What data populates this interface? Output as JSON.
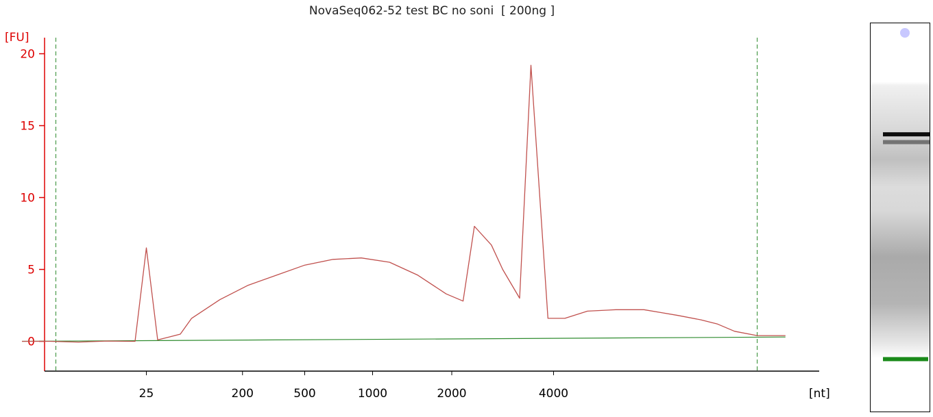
{
  "chart_data": {
    "type": "line",
    "title": "NovaSeq062-52 test BC no soni  [ 200ng ]",
    "ylabel": "[FU]",
    "xlabel": "[nt]",
    "ylim": [
      -2,
      21
    ],
    "y_ticks": [
      0,
      5,
      10,
      15,
      20
    ],
    "x_tick_labels": [
      "25",
      "200",
      "500",
      "1000",
      "2000",
      "4000"
    ],
    "colors": {
      "trace": "#c0504d",
      "y_axis": "#dd0000",
      "baseline": "#2e8b2e",
      "marker_lines": "#2e8b2e",
      "x_axis": "#000000",
      "lower_marker_band": "#1a8a1a",
      "upper_marker_spot": "#c8c8ff"
    },
    "series": [
      {
        "x": [
          0.0,
          0.5,
          1.0,
          1.5,
          2.0,
          2.2,
          2.4,
          2.6,
          2.8,
          3.0,
          3.5,
          4.0,
          4.5,
          5.0,
          5.5,
          6.0,
          6.5,
          7.0,
          7.5,
          7.8,
          8.0,
          8.3,
          8.5,
          8.8,
          9.0,
          9.3,
          9.6,
          10.0,
          10.5,
          11.0,
          11.3,
          11.6,
          12.0,
          12.3,
          12.6,
          13.0,
          13.5
        ],
        "y": [
          0.0,
          0.0,
          -0.05,
          0.02,
          0.0,
          6.5,
          0.1,
          0.3,
          0.5,
          1.6,
          2.9,
          3.9,
          4.6,
          5.3,
          5.7,
          5.8,
          5.5,
          4.6,
          3.3,
          2.8,
          8.0,
          6.7,
          5.0,
          3.0,
          19.2,
          1.6,
          1.6,
          2.1,
          2.2,
          2.2,
          2.0,
          1.8,
          1.5,
          1.2,
          0.7,
          0.4,
          0.4
        ]
      },
      {
        "x": [
          0.0,
          13.5
        ],
        "y": [
          0.0,
          0.3
        ]
      }
    ],
    "x_tick_positions": [
      2.2,
      3.9,
      5.0,
      6.2,
      7.6,
      9.4
    ],
    "marker_lines_x": [
      0.6,
      13.0
    ],
    "gel_bands": [
      {
        "at": 0.285,
        "intensity": 0.95
      },
      {
        "at": 0.305,
        "intensity": 0.55
      }
    ]
  }
}
